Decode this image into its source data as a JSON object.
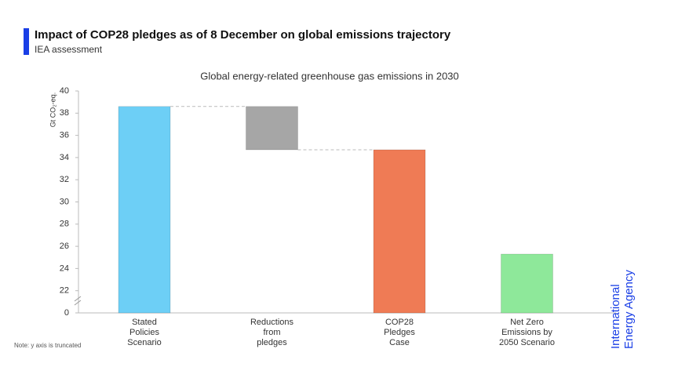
{
  "chart_data": {
    "type": "waterfall",
    "title": "Impact of COP28 pledges as of 8 December on global emissions trajectory",
    "subtitle": "IEA assessment",
    "chart_title": "Global energy-related greenhouse gas emissions in 2030",
    "y_label": "Gt CO₂-eq.",
    "note": "Note: y axis is truncated",
    "logo": "International\nEnergy Agency",
    "categories": [
      "Stated\nPolicies\nScenario",
      "Reductions\nfrom\npledges",
      "COP28\nPledges\nCase",
      "Net Zero\nEmissions by\n2050 Scenario"
    ],
    "values": [
      38.6,
      -3.9,
      34.7,
      25.3
    ],
    "measure": [
      "absolute",
      "relative",
      "absolute",
      "absolute"
    ],
    "colors": [
      "#6dcff6",
      "#a6a6a6",
      "#ef7b55",
      "#8ee89a"
    ],
    "ylim": [
      0,
      40
    ],
    "yticks": [
      0,
      22,
      24,
      26,
      28,
      30,
      32,
      34,
      36,
      38,
      40
    ],
    "axis_break": true
  }
}
